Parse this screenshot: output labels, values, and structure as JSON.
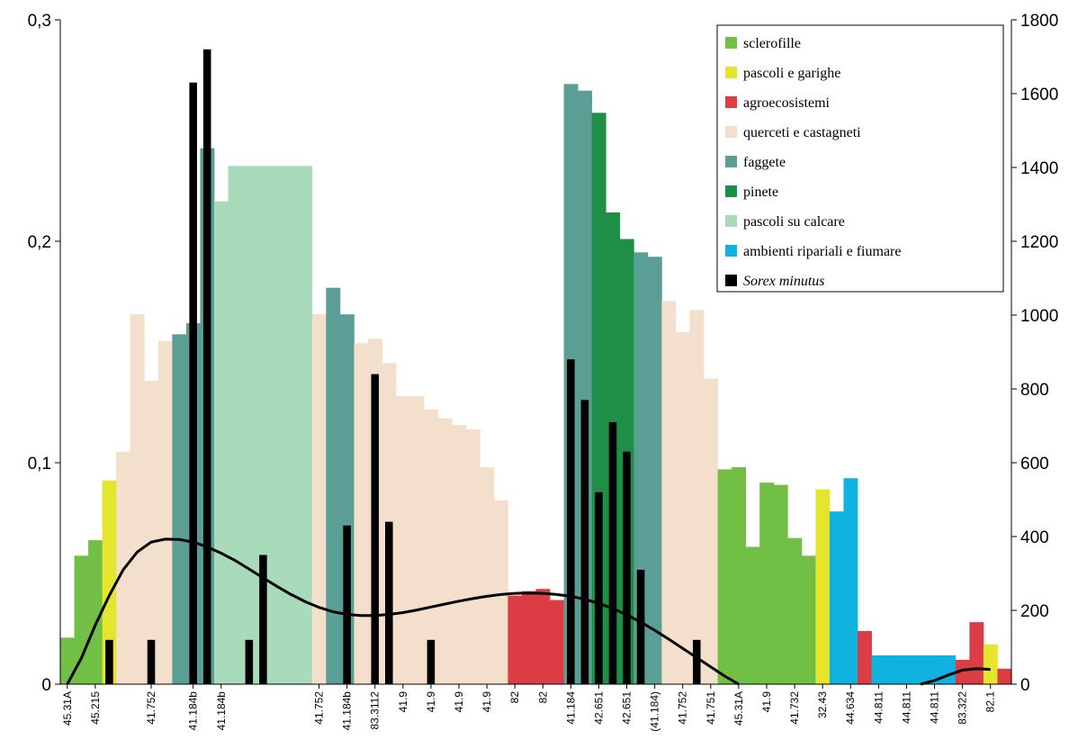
{
  "chart_data": {
    "type": "bar",
    "title": "",
    "xlabel": "",
    "ylabel": "",
    "ylim": [
      0,
      0.3
    ],
    "y2lim": [
      0,
      1800
    ],
    "yticks": [
      "0",
      "0,1",
      "0,2",
      "0,3"
    ],
    "y2ticks": [
      "0",
      "200",
      "400",
      "600",
      "800",
      "1000",
      "1200",
      "1400",
      "1600",
      "1800"
    ],
    "grid": false,
    "legend_position": "top-right",
    "habitats": [
      {
        "key": "scl",
        "name": "sclerofille",
        "color": "#71bf44"
      },
      {
        "key": "pas",
        "name": "pascoli e garighe",
        "color": "#e5e52d"
      },
      {
        "key": "agr",
        "name": "agroecosistemi",
        "color": "#dc3d45"
      },
      {
        "key": "que",
        "name": "querceti e castagneti",
        "color": "#f3dfcc"
      },
      {
        "key": "fag",
        "name": "faggete",
        "color": "#5b9e96"
      },
      {
        "key": "pin",
        "name": "pinete",
        "color": "#1f8e47"
      },
      {
        "key": "cal",
        "name": "pascoli su calcare",
        "color": "#a9dbbb"
      },
      {
        "key": "rip",
        "name": "ambienti ripariali e fiumare",
        "color": "#10b2e0"
      },
      {
        "key": "sor",
        "name": "Sorex minutus",
        "color": "#000000"
      }
    ],
    "habitat_bars": [
      {
        "h": "scl",
        "v": 0.021
      },
      {
        "h": "scl",
        "v": 0.058
      },
      {
        "h": "scl",
        "v": 0.065
      },
      {
        "h": "pas",
        "v": 0.092
      },
      {
        "h": "que",
        "v": 0.105
      },
      {
        "h": "que",
        "v": 0.167
      },
      {
        "h": "que",
        "v": 0.137
      },
      {
        "h": "que",
        "v": 0.155
      },
      {
        "h": "fag",
        "v": 0.158
      },
      {
        "h": "fag",
        "v": 0.163
      },
      {
        "h": "fag",
        "v": 0.242
      },
      {
        "h": "cal",
        "v": 0.218
      },
      {
        "h": "cal",
        "v": 0.234
      },
      {
        "h": "cal",
        "v": 0.234
      },
      {
        "h": "cal",
        "v": 0.234
      },
      {
        "h": "cal",
        "v": 0.234
      },
      {
        "h": "cal",
        "v": 0.234
      },
      {
        "h": "cal",
        "v": 0.234
      },
      {
        "h": "que",
        "v": 0.167
      },
      {
        "h": "fag",
        "v": 0.179
      },
      {
        "h": "fag",
        "v": 0.167
      },
      {
        "h": "que",
        "v": 0.154
      },
      {
        "h": "que",
        "v": 0.156
      },
      {
        "h": "que",
        "v": 0.145
      },
      {
        "h": "que",
        "v": 0.13
      },
      {
        "h": "que",
        "v": 0.13
      },
      {
        "h": "que",
        "v": 0.124
      },
      {
        "h": "que",
        "v": 0.12
      },
      {
        "h": "que",
        "v": 0.117
      },
      {
        "h": "que",
        "v": 0.115
      },
      {
        "h": "que",
        "v": 0.098
      },
      {
        "h": "que",
        "v": 0.083
      },
      {
        "h": "agr",
        "v": 0.04
      },
      {
        "h": "agr",
        "v": 0.042
      },
      {
        "h": "agr",
        "v": 0.043
      },
      {
        "h": "agr",
        "v": 0.038
      },
      {
        "h": "fag",
        "v": 0.271
      },
      {
        "h": "fag",
        "v": 0.268
      },
      {
        "h": "pin",
        "v": 0.258
      },
      {
        "h": "pin",
        "v": 0.213
      },
      {
        "h": "pin",
        "v": 0.201
      },
      {
        "h": "fag",
        "v": 0.195
      },
      {
        "h": "fag",
        "v": 0.193
      },
      {
        "h": "que",
        "v": 0.173
      },
      {
        "h": "que",
        "v": 0.159
      },
      {
        "h": "que",
        "v": 0.169
      },
      {
        "h": "que",
        "v": 0.138
      },
      {
        "h": "scl",
        "v": 0.097
      },
      {
        "h": "scl",
        "v": 0.098
      },
      {
        "h": "scl",
        "v": 0.062
      },
      {
        "h": "scl",
        "v": 0.091
      },
      {
        "h": "scl",
        "v": 0.09
      },
      {
        "h": "scl",
        "v": 0.066
      },
      {
        "h": "scl",
        "v": 0.058
      },
      {
        "h": "pas",
        "v": 0.088
      },
      {
        "h": "rip",
        "v": 0.078
      },
      {
        "h": "rip",
        "v": 0.093
      },
      {
        "h": "agr",
        "v": 0.024
      },
      {
        "h": "rip",
        "v": 0.013
      },
      {
        "h": "rip",
        "v": 0.013
      },
      {
        "h": "rip",
        "v": 0.013
      },
      {
        "h": "rip",
        "v": 0.013
      },
      {
        "h": "rip",
        "v": 0.013
      },
      {
        "h": "rip",
        "v": 0.013
      },
      {
        "h": "agr",
        "v": 0.011
      },
      {
        "h": "agr",
        "v": 0.028
      },
      {
        "h": "pas",
        "v": 0.018
      },
      {
        "h": "agr",
        "v": 0.007
      }
    ],
    "sorex_series": {
      "name": "Sorex minutus",
      "bars": [
        {
          "i": 3,
          "v": 120
        },
        {
          "i": 6,
          "v": 120
        },
        {
          "i": 9,
          "v": 1630
        },
        {
          "i": 10,
          "v": 1720
        },
        {
          "i": 13,
          "v": 120
        },
        {
          "i": 14,
          "v": 350
        },
        {
          "i": 20,
          "v": 430
        },
        {
          "i": 22,
          "v": 840
        },
        {
          "i": 23,
          "v": 440
        },
        {
          "i": 26,
          "v": 120
        },
        {
          "i": 36,
          "v": 880
        },
        {
          "i": 37,
          "v": 770
        },
        {
          "i": 38,
          "v": 520
        },
        {
          "i": 39,
          "v": 710
        },
        {
          "i": 40,
          "v": 630
        },
        {
          "i": 41,
          "v": 310
        },
        {
          "i": 45,
          "v": 120
        }
      ],
      "trend_axis": "right",
      "trend": [
        {
          "i": 0,
          "v": 0
        },
        {
          "i": 1,
          "v": 70
        },
        {
          "i": 2,
          "v": 160
        },
        {
          "i": 3,
          "v": 240
        },
        {
          "i": 4,
          "v": 310
        },
        {
          "i": 5,
          "v": 358
        },
        {
          "i": 6,
          "v": 385
        },
        {
          "i": 7,
          "v": 393
        },
        {
          "i": 8,
          "v": 392
        },
        {
          "i": 9,
          "v": 385
        },
        {
          "i": 10,
          "v": 372
        },
        {
          "i": 11,
          "v": 355
        },
        {
          "i": 12,
          "v": 335
        },
        {
          "i": 13,
          "v": 312
        },
        {
          "i": 14,
          "v": 288
        },
        {
          "i": 15,
          "v": 265
        },
        {
          "i": 16,
          "v": 243
        },
        {
          "i": 17,
          "v": 224
        },
        {
          "i": 18,
          "v": 208
        },
        {
          "i": 19,
          "v": 196
        },
        {
          "i": 20,
          "v": 189
        },
        {
          "i": 21,
          "v": 186
        },
        {
          "i": 22,
          "v": 186
        },
        {
          "i": 23,
          "v": 189
        },
        {
          "i": 24,
          "v": 194
        },
        {
          "i": 25,
          "v": 201
        },
        {
          "i": 26,
          "v": 209
        },
        {
          "i": 27,
          "v": 217
        },
        {
          "i": 28,
          "v": 225
        },
        {
          "i": 29,
          "v": 232
        },
        {
          "i": 30,
          "v": 238
        },
        {
          "i": 31,
          "v": 243
        },
        {
          "i": 32,
          "v": 246
        },
        {
          "i": 33,
          "v": 247
        },
        {
          "i": 34,
          "v": 246
        },
        {
          "i": 35,
          "v": 243
        },
        {
          "i": 36,
          "v": 238
        },
        {
          "i": 37,
          "v": 230
        },
        {
          "i": 38,
          "v": 219
        },
        {
          "i": 39,
          "v": 205
        },
        {
          "i": 40,
          "v": 188
        },
        {
          "i": 41,
          "v": 168
        },
        {
          "i": 42,
          "v": 146
        },
        {
          "i": 43,
          "v": 122
        },
        {
          "i": 44,
          "v": 97
        },
        {
          "i": 45,
          "v": 72
        },
        {
          "i": 46,
          "v": 47
        },
        {
          "i": 47,
          "v": 22
        },
        {
          "i": 48,
          "v": 0
        }
      ],
      "trend_tail": [
        {
          "i": 61,
          "v": 0
        },
        {
          "i": 62,
          "v": 10
        },
        {
          "i": 63,
          "v": 25
        },
        {
          "i": 64,
          "v": 38
        },
        {
          "i": 65,
          "v": 42
        },
        {
          "i": 66,
          "v": 40
        }
      ]
    },
    "xtick_labels": [
      {
        "i": 0,
        "t": "45.31A"
      },
      {
        "i": 2,
        "t": "45.215"
      },
      {
        "i": 6,
        "t": "41.752"
      },
      {
        "i": 9,
        "t": "41.184b"
      },
      {
        "i": 11,
        "t": "41.184b"
      },
      {
        "i": 18,
        "t": "41.752"
      },
      {
        "i": 20,
        "t": "41.184b"
      },
      {
        "i": 22,
        "t": "83.3112"
      },
      {
        "i": 24,
        "t": "41.9"
      },
      {
        "i": 26,
        "t": "41.9"
      },
      {
        "i": 28,
        "t": "41.9"
      },
      {
        "i": 30,
        "t": "41.9"
      },
      {
        "i": 32,
        "t": "82"
      },
      {
        "i": 34,
        "t": "82"
      },
      {
        "i": 36,
        "t": "41.184"
      },
      {
        "i": 38,
        "t": "42.651"
      },
      {
        "i": 40,
        "t": "42.651"
      },
      {
        "i": 42,
        "t": "(41.184)"
      },
      {
        "i": 44,
        "t": "41.752"
      },
      {
        "i": 46,
        "t": "41.751"
      },
      {
        "i": 48,
        "t": "45.31A"
      },
      {
        "i": 50,
        "t": "41.9"
      },
      {
        "i": 52,
        "t": "41.732"
      },
      {
        "i": 54,
        "t": "32.43"
      },
      {
        "i": 56,
        "t": "44.634"
      },
      {
        "i": 58,
        "t": "44.811"
      },
      {
        "i": 60,
        "t": "44.811"
      },
      {
        "i": 62,
        "t": "44.811"
      },
      {
        "i": 64,
        "t": "83.322"
      },
      {
        "i": 66,
        "t": "82.1"
      }
    ]
  }
}
